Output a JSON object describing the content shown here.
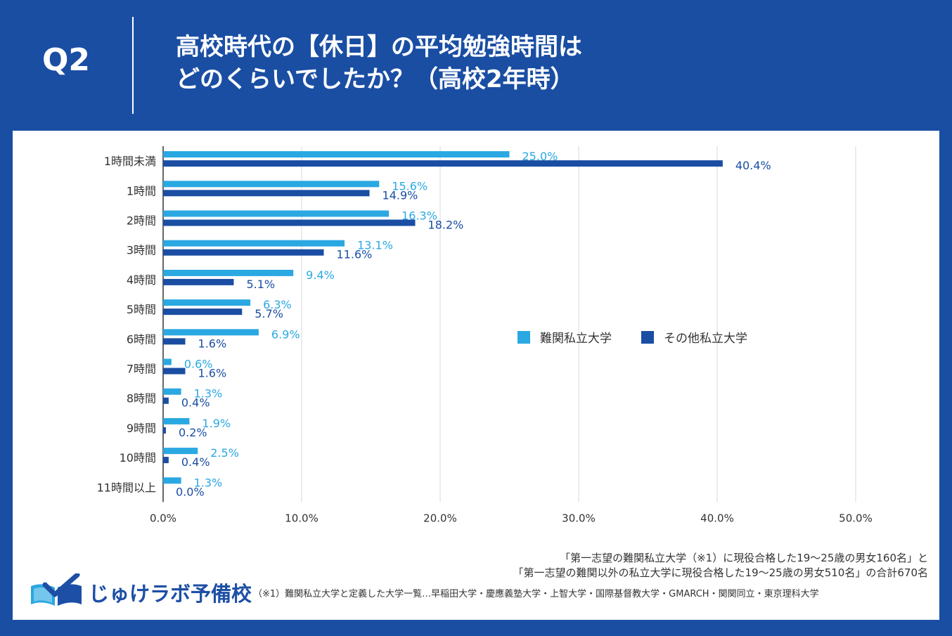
{
  "header": {
    "q_label": "Q2",
    "title_line1": "高校時代の【休日】の平均勉強時間は",
    "title_line2": "どのくらいでしたか？（高校2年時）"
  },
  "colors": {
    "background": "#1a4ea3",
    "series1": "#2aa8e2",
    "series2": "#1a4ea3",
    "grid": "#d9d9d9"
  },
  "chart_data": {
    "type": "bar",
    "orientation": "horizontal",
    "categories": [
      "1時間未満",
      "1時間",
      "2時間",
      "3時間",
      "4時間",
      "5時間",
      "6時間",
      "7時間",
      "8時間",
      "9時間",
      "10時間",
      "11時間以上"
    ],
    "series": [
      {
        "name": "難関私立大学",
        "values": [
          25.0,
          15.6,
          16.3,
          13.1,
          9.4,
          6.3,
          6.9,
          0.6,
          1.3,
          1.9,
          2.5,
          1.3
        ],
        "labels": [
          "25.0%",
          "15.6%",
          "16.3%",
          "13.1%",
          "9.4%",
          "6.3%",
          "6.9%",
          "0.6%",
          "1.3%",
          "1.9%",
          "2.5%",
          "1.3%"
        ]
      },
      {
        "name": "その他私立大学",
        "values": [
          40.4,
          14.9,
          18.2,
          11.6,
          5.1,
          5.7,
          1.6,
          1.6,
          0.4,
          0.2,
          0.4,
          0.0
        ],
        "labels": [
          "40.4%",
          "14.9%",
          "18.2%",
          "11.6%",
          "5.1%",
          "5.7%",
          "1.6%",
          "1.6%",
          "0.4%",
          "0.2%",
          "0.4%",
          "0.0%"
        ]
      }
    ],
    "xlim": [
      0,
      50
    ],
    "xticks": [
      0,
      10,
      20,
      30,
      40,
      50
    ],
    "xtick_labels": [
      "0.0%",
      "10.0%",
      "20.0%",
      "30.0%",
      "40.0%",
      "50.0%"
    ],
    "grid": true,
    "legend_position": "right-middle"
  },
  "source": {
    "line1": "「第一志望の難関私立大学（※1）に現役合格した19～25歳の男女160名」と",
    "line2": "「第一志望の難関以外の私立大学に現役合格した19～25歳の男女510名」の合計670名"
  },
  "footnote": "（※1）難関私立大学と定義した大学一覧…早稲田大学・慶應義塾大学・上智大学・国際基督教大学・GMARCH・関関同立・東京理科大学",
  "logo": {
    "text": "じゅけラボ予備校",
    "icon": "open-book-check-icon"
  }
}
